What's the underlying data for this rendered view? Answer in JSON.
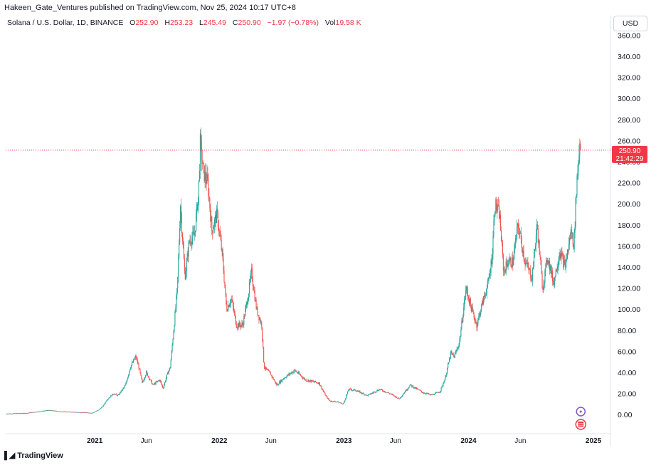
{
  "header": {
    "published_line": "Hakeen_Gate_Ventures published on TradingView.com, Nov 25, 2024 10:17 UTC+8"
  },
  "legend": {
    "symbol": "Solana / U.S. Dollar, 1D, BINANCE",
    "open_label": "O",
    "open": "252.90",
    "high_label": "H",
    "high": "253.23",
    "low_label": "L",
    "low": "245.49",
    "close_label": "C",
    "close": "250.90",
    "change": "−1.97 (−0.78%)",
    "vol_label": "Vol",
    "vol": "19.58 K"
  },
  "currency_button": "USD",
  "price_badge": {
    "price": "250.90",
    "countdown": "21:42:29"
  },
  "footer": {
    "brand": "TradingView",
    "logo": "tv-logo-icon"
  },
  "colors": {
    "up": "#26a69a",
    "down": "#ef5350",
    "last_price": "#f23645",
    "grid": "#f0f3fa"
  },
  "markers": [
    {
      "icon": "sparkle-event-icon",
      "color": "#7e57c2"
    },
    {
      "icon": "us-flag-icon",
      "color": "#f23645"
    }
  ],
  "chart_data": {
    "type": "candlestick",
    "y_ticks": [
      "360.00",
      "340.00",
      "320.00",
      "300.00",
      "280.00",
      "260.00",
      "240.00",
      "220.00",
      "200.00",
      "180.00",
      "160.00",
      "140.00",
      "120.00",
      "100.00",
      "80.00",
      "60.00",
      "40.00",
      "20.00",
      "0.00"
    ],
    "ylim": [
      -10,
      365
    ],
    "x_ticks": [
      {
        "label": "2021",
        "date": "2021-01-01",
        "bold": true
      },
      {
        "label": "Jun",
        "date": "2021-06-01",
        "bold": false
      },
      {
        "label": "2022",
        "date": "2022-01-01",
        "bold": true
      },
      {
        "label": "Jun",
        "date": "2022-06-01",
        "bold": false
      },
      {
        "label": "2023",
        "date": "2023-01-01",
        "bold": true
      },
      {
        "label": "Jun",
        "date": "2023-06-01",
        "bold": false
      },
      {
        "label": "2024",
        "date": "2024-01-01",
        "bold": true
      },
      {
        "label": "Jun",
        "date": "2024-06-01",
        "bold": false
      },
      {
        "label": "2025",
        "date": "2025-01-01",
        "bold": true
      }
    ],
    "xlim": [
      "2020-04-15",
      "2025-02-20"
    ],
    "last_price": 250.9,
    "price_path": [
      [
        "2020-04-15",
        0.8
      ],
      [
        "2020-06-15",
        1.4
      ],
      [
        "2020-08-20",
        4.2
      ],
      [
        "2020-09-20",
        2.9
      ],
      [
        "2020-11-15",
        2.2
      ],
      [
        "2020-12-25",
        1.6
      ],
      [
        "2021-01-10",
        4
      ],
      [
        "2021-01-25",
        8
      ],
      [
        "2021-02-05",
        14
      ],
      [
        "2021-02-25",
        20
      ],
      [
        "2021-03-10",
        18
      ],
      [
        "2021-04-01",
        28
      ],
      [
        "2021-04-15",
        45
      ],
      [
        "2021-05-01",
        55
      ],
      [
        "2021-05-10",
        45
      ],
      [
        "2021-05-20",
        30
      ],
      [
        "2021-06-01",
        40
      ],
      [
        "2021-06-20",
        28
      ],
      [
        "2021-07-10",
        33
      ],
      [
        "2021-07-20",
        25
      ],
      [
        "2021-08-01",
        38
      ],
      [
        "2021-08-10",
        45
      ],
      [
        "2021-08-20",
        80
      ],
      [
        "2021-08-31",
        120
      ],
      [
        "2021-09-09",
        200
      ],
      [
        "2021-09-22",
        130
      ],
      [
        "2021-10-05",
        165
      ],
      [
        "2021-10-20",
        170
      ],
      [
        "2021-11-01",
        210
      ],
      [
        "2021-11-06",
        258
      ],
      [
        "2021-11-15",
        230
      ],
      [
        "2021-11-28",
        220
      ],
      [
        "2021-12-10",
        175
      ],
      [
        "2021-12-25",
        190
      ],
      [
        "2022-01-10",
        150
      ],
      [
        "2022-01-22",
        100
      ],
      [
        "2022-02-05",
        110
      ],
      [
        "2022-02-20",
        85
      ],
      [
        "2022-03-10",
        85
      ],
      [
        "2022-03-25",
        110
      ],
      [
        "2022-04-05",
        135
      ],
      [
        "2022-04-20",
        100
      ],
      [
        "2022-05-05",
        85
      ],
      [
        "2022-05-12",
        45
      ],
      [
        "2022-06-01",
        38
      ],
      [
        "2022-06-18",
        28
      ],
      [
        "2022-07-10",
        35
      ],
      [
        "2022-08-10",
        42
      ],
      [
        "2022-09-10",
        33
      ],
      [
        "2022-10-20",
        30
      ],
      [
        "2022-11-08",
        18
      ],
      [
        "2022-11-20",
        13
      ],
      [
        "2022-12-15",
        12
      ],
      [
        "2022-12-30",
        9.9
      ],
      [
        "2023-01-15",
        24
      ],
      [
        "2023-02-05",
        23
      ],
      [
        "2023-03-10",
        18
      ],
      [
        "2023-04-15",
        24
      ],
      [
        "2023-05-15",
        20
      ],
      [
        "2023-06-12",
        15
      ],
      [
        "2023-07-14",
        28
      ],
      [
        "2023-08-20",
        21
      ],
      [
        "2023-09-15",
        18.5
      ],
      [
        "2023-10-10",
        22
      ],
      [
        "2023-10-25",
        35
      ],
      [
        "2023-11-10",
        58
      ],
      [
        "2023-11-20",
        55
      ],
      [
        "2023-12-05",
        68
      ],
      [
        "2023-12-25",
        120
      ],
      [
        "2024-01-10",
        100
      ],
      [
        "2024-01-25",
        85
      ],
      [
        "2024-02-10",
        105
      ],
      [
        "2024-02-28",
        125
      ],
      [
        "2024-03-10",
        150
      ],
      [
        "2024-03-18",
        200
      ],
      [
        "2024-04-01",
        190
      ],
      [
        "2024-04-13",
        135
      ],
      [
        "2024-04-25",
        145
      ],
      [
        "2024-05-10",
        145
      ],
      [
        "2024-05-25",
        180
      ],
      [
        "2024-06-15",
        145
      ],
      [
        "2024-07-05",
        130
      ],
      [
        "2024-07-20",
        180
      ],
      [
        "2024-08-05",
        120
      ],
      [
        "2024-08-20",
        150
      ],
      [
        "2024-09-06",
        125
      ],
      [
        "2024-09-25",
        155
      ],
      [
        "2024-10-10",
        140
      ],
      [
        "2024-10-28",
        175
      ],
      [
        "2024-11-05",
        160
      ],
      [
        "2024-11-12",
        215
      ],
      [
        "2024-11-22",
        258
      ],
      [
        "2024-11-25",
        250.9
      ]
    ]
  }
}
